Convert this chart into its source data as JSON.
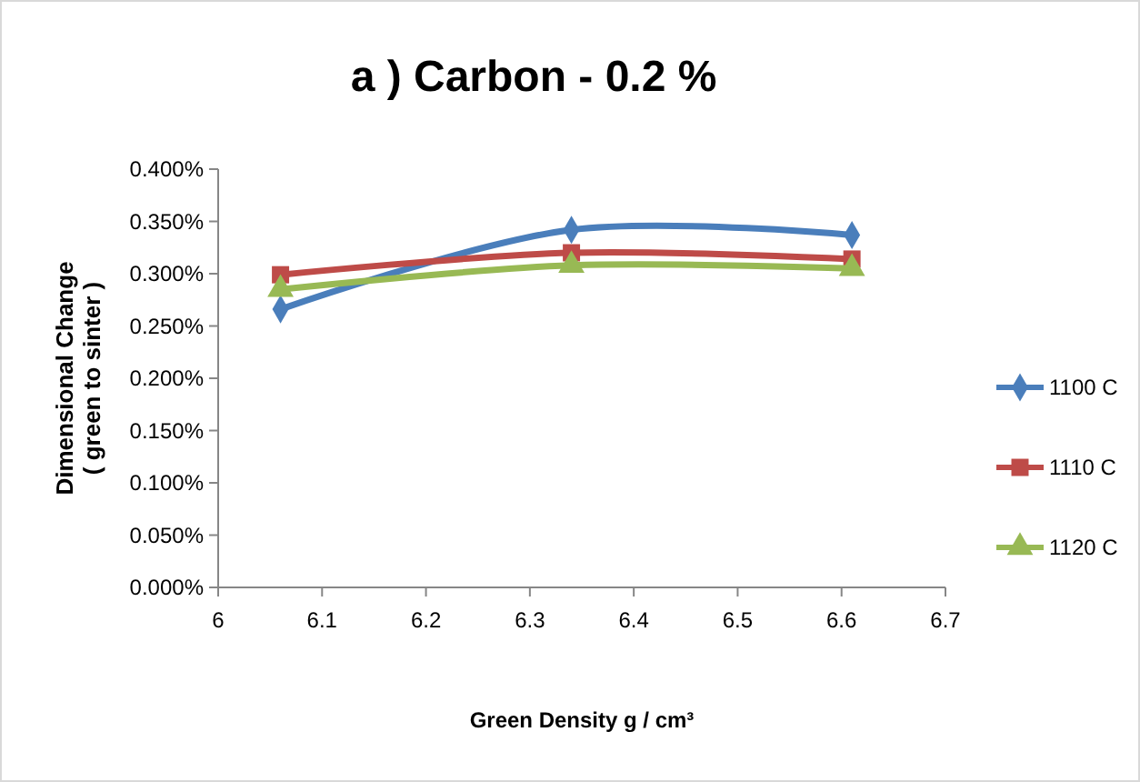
{
  "chart_data": {
    "type": "line",
    "title": "a ) Carbon - 0.2 %",
    "xlabel": "Green Density g / cm³",
    "ylabel": "Dimensional Change\n( green to sinter )",
    "x": [
      6.06,
      6.34,
      6.61
    ],
    "series": [
      {
        "name": "1100 C",
        "color": "#4a7ebb",
        "values": [
          0.266,
          0.342,
          0.337
        ],
        "marker": "diamond"
      },
      {
        "name": "1110 C",
        "color": "#be4b48",
        "values": [
          0.299,
          0.32,
          0.314
        ],
        "marker": "square"
      },
      {
        "name": "1120 C",
        "color": "#98b954",
        "values": [
          0.285,
          0.308,
          0.305
        ],
        "marker": "triangle"
      }
    ],
    "xlim": [
      6,
      6.7
    ],
    "xticks": [
      6,
      6.1,
      6.2,
      6.3,
      6.4,
      6.5,
      6.6,
      6.7
    ],
    "ylim": [
      0,
      0.4
    ],
    "yticks": [
      {
        "value": 0,
        "label": "0.000%"
      },
      {
        "value": 0.05,
        "label": "0.050%"
      },
      {
        "value": 0.1,
        "label": "0.100%"
      },
      {
        "value": 0.15,
        "label": "0.150%"
      },
      {
        "value": 0.2,
        "label": "0.200%"
      },
      {
        "value": 0.25,
        "label": "0.250%"
      },
      {
        "value": 0.3,
        "label": "0.300%"
      },
      {
        "value": 0.35,
        "label": "0.350%"
      },
      {
        "value": 0.4,
        "label": "0.400%"
      }
    ],
    "grid": false,
    "legend": "right",
    "line_style": "solid"
  }
}
